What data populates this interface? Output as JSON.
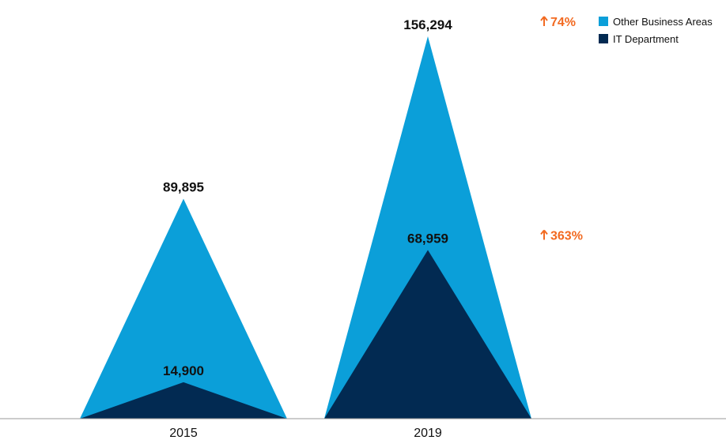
{
  "chart_data": {
    "type": "area",
    "categories": [
      "2015",
      "2019"
    ],
    "series": [
      {
        "name": "Other Business Areas",
        "values": [
          89895,
          156294
        ],
        "value_labels": [
          "89,895",
          "156,294"
        ],
        "color": "#0b9fd9"
      },
      {
        "name": "IT Department",
        "values": [
          14900,
          68959
        ],
        "value_labels": [
          "14,900",
          "68,959"
        ],
        "color": "#022a52"
      }
    ],
    "growth": [
      {
        "series": "Other Business Areas",
        "label": "74%"
      },
      {
        "series": "IT Department",
        "label": "363%"
      }
    ],
    "growth_color": "#f26a21",
    "ylim": [
      0,
      165000
    ],
    "grid": false,
    "legend_position": "top-right"
  }
}
